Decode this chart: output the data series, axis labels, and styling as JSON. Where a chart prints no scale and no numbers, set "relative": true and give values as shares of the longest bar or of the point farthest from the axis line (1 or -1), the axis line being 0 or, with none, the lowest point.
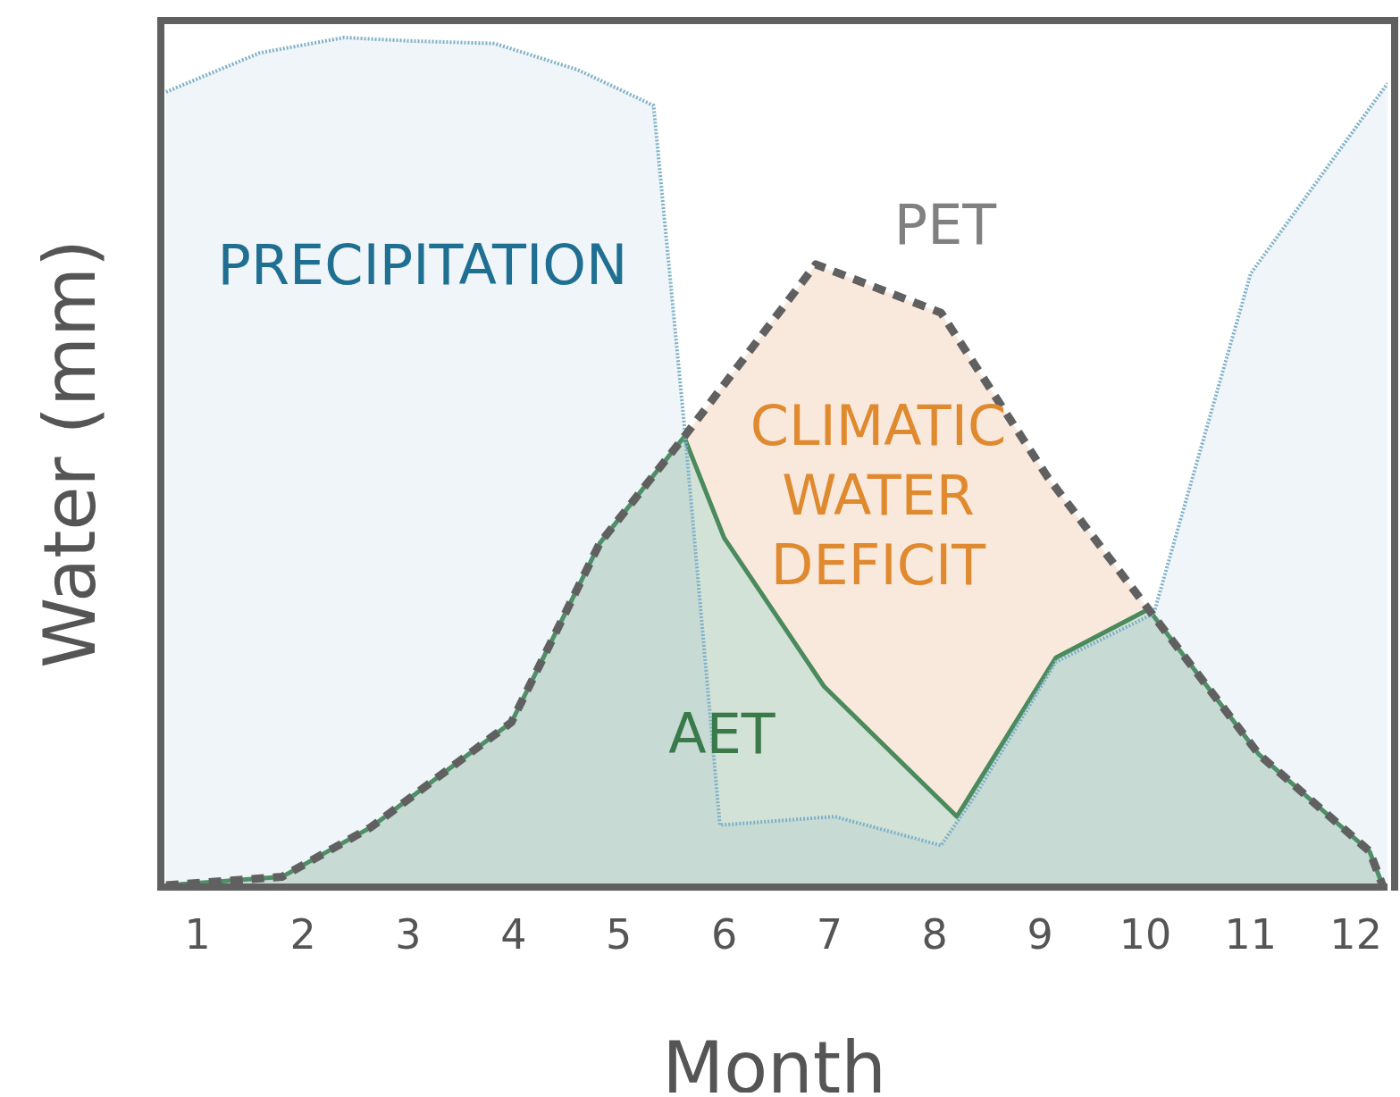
{
  "chart_data": {
    "type": "area",
    "xlabel": "Month",
    "ylabel": "Water (mm)",
    "relative": true,
    "xlim": [
      0.65,
      12.3
    ],
    "xticks": [
      1,
      2,
      3,
      4,
      5,
      6,
      7,
      8,
      9,
      10,
      11,
      12
    ],
    "series": [
      {
        "name": "CLIMATIC WATER DEFICIT",
        "color": "#f9e9dd",
        "x": [
          5.62,
          6.87,
          8.06,
          9.07,
          10.03
        ],
        "values": [
          0.53,
          0.733,
          0.676,
          0.483,
          0.327
        ]
      },
      {
        "name": "AET",
        "color": "#4a8a5c",
        "line_style": "solid",
        "x": [
          0.7,
          1.8,
          2.64,
          3.98,
          4.82,
          5.62,
          6.0,
          6.95,
          8.21,
          9.15,
          10.03,
          11.08,
          12.13,
          12.26
        ],
        "values": [
          0.002,
          0.012,
          0.07,
          0.194,
          0.405,
          0.53,
          0.411,
          0.236,
          0.083,
          0.27,
          0.327,
          0.156,
          0.042,
          0
        ]
      },
      {
        "name": "PRECIPITATION",
        "color": "#7fb0c8",
        "line_style": "dotted",
        "x": [
          0.7,
          1.59,
          2.39,
          3.02,
          3.82,
          4.61,
          5.33,
          5.62,
          5.96,
          7.05,
          8.06,
          8.39,
          9.15,
          10.08,
          11.0,
          12.3
        ],
        "values": [
          0.936,
          0.982,
          1.0,
          0.996,
          0.993,
          0.962,
          0.92,
          0.546,
          0.073,
          0.083,
          0.049,
          0.109,
          0.265,
          0.322,
          0.722,
          0.946
        ]
      },
      {
        "name": "PET",
        "type": "line",
        "color": "#606060",
        "line_style": "dashed",
        "x": [
          0.7,
          1.8,
          2.64,
          3.98,
          4.82,
          5.62,
          6.87,
          8.06,
          9.07,
          10.03,
          11.08,
          12.13,
          12.26
        ],
        "values": [
          0.002,
          0.012,
          0.07,
          0.194,
          0.405,
          0.53,
          0.733,
          0.676,
          0.483,
          0.327,
          0.156,
          0.042,
          0
        ]
      }
    ]
  }
}
